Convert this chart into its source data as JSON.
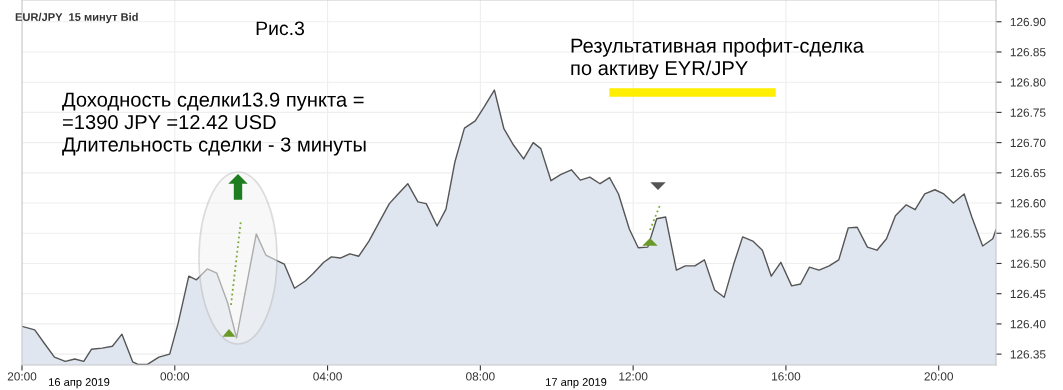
{
  "chart_data": {
    "type": "area",
    "title": "EUR/JPY  15 минут Bid",
    "annotations": [
      "Рис.3",
      "Доходность сделки13.9 пункта =\n=1390 JPY =12.42 USD\nДлительность сделки - 3 минуты",
      "Результативная профит-сделка\nпо активу EYR/JPY",
      "16 апр 2019",
      "17 апр 2019"
    ],
    "series": [
      {
        "color": "#dfe6f0",
        "x": [
          "2019-04-16T20:00",
          "2019-04-16T20:20",
          "2019-04-16T20:35",
          "2019-04-16T20:51",
          "2019-04-16T21:08",
          "2019-04-16T21:23",
          "2019-04-16T21:37",
          "2019-04-16T21:49",
          "2019-04-16T22:06",
          "2019-04-16T22:22",
          "2019-04-16T22:37",
          "2019-04-16T22:54",
          "2019-04-16T23:02",
          "2019-04-16T23:17",
          "2019-04-16T23:35",
          "2019-04-16T23:52",
          "2019-04-17T00:05",
          "2019-04-17T00:22",
          "2019-04-17T00:34",
          "2019-04-17T00:51",
          "2019-04-17T01:06",
          "2019-04-17T01:23",
          "2019-04-17T01:37",
          "2019-04-17T02:08",
          "2019-04-17T02:23",
          "2019-04-17T02:38",
          "2019-04-17T02:52",
          "2019-04-17T03:08",
          "2019-04-17T03:25",
          "2019-04-17T03:37",
          "2019-04-17T03:54",
          "2019-04-17T04:06",
          "2019-04-17T04:20",
          "2019-04-17T04:35",
          "2019-04-17T04:49",
          "2019-04-17T05:05",
          "2019-04-17T05:22",
          "2019-04-17T05:37",
          "2019-04-17T05:49",
          "2019-04-17T06:06",
          "2019-04-17T06:22",
          "2019-04-17T06:35",
          "2019-04-17T06:52",
          "2019-04-17T07:06",
          "2019-04-17T07:20",
          "2019-04-17T07:35",
          "2019-04-17T07:52",
          "2019-04-17T08:06",
          "2019-04-17T08:22",
          "2019-04-17T08:37",
          "2019-04-17T08:52",
          "2019-04-17T09:08",
          "2019-04-17T09:23",
          "2019-04-17T09:35",
          "2019-04-17T09:51",
          "2019-04-17T10:06",
          "2019-04-17T10:23",
          "2019-04-17T10:37",
          "2019-04-17T10:52",
          "2019-04-17T11:08",
          "2019-04-17T11:23",
          "2019-04-17T11:37",
          "2019-04-17T11:54",
          "2019-04-17T12:08",
          "2019-04-17T12:23",
          "2019-04-17T12:37",
          "2019-04-17T12:51",
          "2019-04-17T13:08",
          "2019-04-17T13:22",
          "2019-04-17T13:37",
          "2019-04-17T13:52",
          "2019-04-17T14:08",
          "2019-04-17T14:23",
          "2019-04-17T14:38",
          "2019-04-17T14:52",
          "2019-04-17T15:08",
          "2019-04-17T15:23",
          "2019-04-17T15:37",
          "2019-04-17T15:52",
          "2019-04-17T16:09",
          "2019-04-17T16:23",
          "2019-04-17T16:37",
          "2019-04-17T16:52",
          "2019-04-17T17:08",
          "2019-04-17T17:23",
          "2019-04-17T17:38",
          "2019-04-17T17:52",
          "2019-04-17T18:08",
          "2019-04-17T18:23",
          "2019-04-17T18:38",
          "2019-04-17T18:52",
          "2019-04-17T19:09",
          "2019-04-17T19:23",
          "2019-04-17T19:38",
          "2019-04-17T19:54",
          "2019-04-17T20:08",
          "2019-04-17T20:23",
          "2019-04-17T20:40",
          "2019-04-17T20:52",
          "2019-04-17T21:09",
          "2019-04-17T21:25",
          "2019-04-17T21:30"
        ],
        "values": [
          126.396,
          126.39,
          126.368,
          126.345,
          126.338,
          126.342,
          126.338,
          126.358,
          126.36,
          126.363,
          126.383,
          126.337,
          126.333,
          126.333,
          126.345,
          126.35,
          126.4,
          126.479,
          126.473,
          126.491,
          126.484,
          126.435,
          126.377,
          126.549,
          126.514,
          126.506,
          126.499,
          126.459,
          126.471,
          126.483,
          126.502,
          126.511,
          126.509,
          126.516,
          126.512,
          126.537,
          126.57,
          126.599,
          126.613,
          126.632,
          126.602,
          126.599,
          126.562,
          126.59,
          126.668,
          126.724,
          126.736,
          126.759,
          126.787,
          126.723,
          126.696,
          126.673,
          126.7,
          126.69,
          126.637,
          126.647,
          126.655,
          126.638,
          126.643,
          126.632,
          126.642,
          126.615,
          126.557,
          126.526,
          126.527,
          126.574,
          126.577,
          126.489,
          126.496,
          126.496,
          126.506,
          126.456,
          126.444,
          126.499,
          126.544,
          126.537,
          126.522,
          126.479,
          126.502,
          126.463,
          126.466,
          126.494,
          126.489,
          126.496,
          126.506,
          126.559,
          126.56,
          126.527,
          126.522,
          126.541,
          126.579,
          126.597,
          126.589,
          126.615,
          126.622,
          126.615,
          126.6,
          126.615,
          126.577,
          126.529,
          126.541,
          126.556
        ]
      }
    ],
    "xlim": [
      "2019-04-16T20:00",
      "2019-04-17T21:30"
    ],
    "xticks": [
      {
        "value": "2019-04-16T20:00",
        "label": "20:00"
      },
      {
        "value": "2019-04-17T00:00",
        "label": "00:00"
      },
      {
        "value": "2019-04-17T04:00",
        "label": "04:00"
      },
      {
        "value": "2019-04-17T08:00",
        "label": "08:00"
      },
      {
        "value": "2019-04-17T12:00",
        "label": "12:00"
      },
      {
        "value": "2019-04-17T16:00",
        "label": "16:00"
      },
      {
        "value": "2019-04-17T20:00",
        "label": "20:00"
      }
    ],
    "ylim": [
      126.332,
      126.936
    ],
    "yticks": [
      126.35,
      {
        "value": 126.4,
        "label": "126.40"
      },
      126.45,
      {
        "value": 126.5,
        "label": "126.50"
      },
      126.55,
      {
        "value": 126.6,
        "label": "126.60"
      },
      126.65,
      {
        "value": 126.7,
        "label": "126.70"
      },
      126.75,
      {
        "value": 126.8,
        "label": "126.80"
      },
      126.85,
      {
        "value": 126.9,
        "label": "126.90"
      }
    ],
    "grid": true,
    "legend": false
  }
}
